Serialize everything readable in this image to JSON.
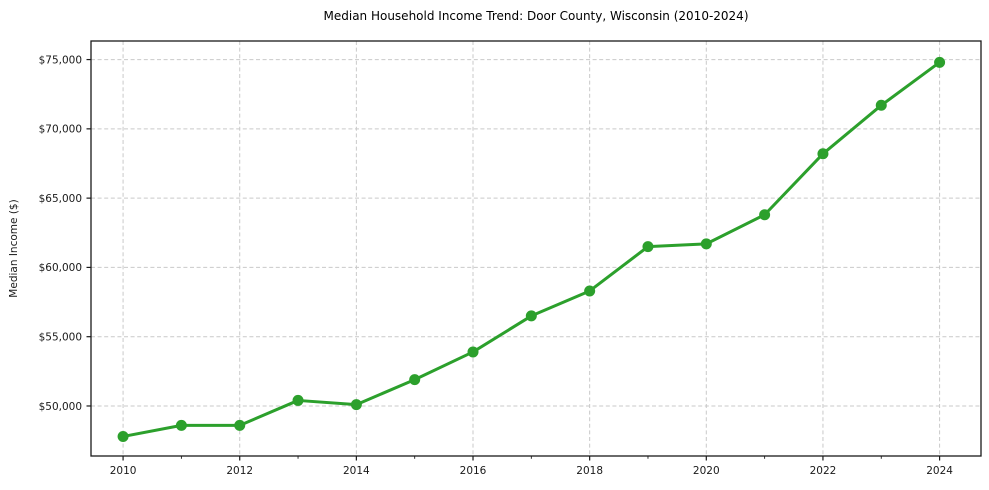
{
  "chart_data": {
    "type": "line",
    "title": "Median Household Income Trend: Door County, Wisconsin (2010-2024)",
    "xlabel": "",
    "ylabel": "Median Income ($)",
    "x": [
      2010,
      2011,
      2012,
      2013,
      2014,
      2015,
      2016,
      2017,
      2018,
      2019,
      2020,
      2021,
      2022,
      2023,
      2024
    ],
    "y": [
      47800,
      48600,
      48600,
      50400,
      50100,
      51900,
      53900,
      56500,
      58300,
      61500,
      61700,
      63800,
      68200,
      71700,
      74800
    ],
    "series_name": "Median household income",
    "x_major_ticks": [
      2010,
      2012,
      2014,
      2016,
      2018,
      2020,
      2022,
      2024
    ],
    "x_minor_ticks": [
      2011,
      2013,
      2015,
      2017,
      2019,
      2021,
      2023
    ],
    "y_ticks": [
      50000,
      55000,
      60000,
      65000,
      70000,
      75000
    ],
    "y_tick_labels": [
      "$50,000",
      "$55,000",
      "$60,000",
      "$65,000",
      "$70,000",
      "$75,000"
    ],
    "xlim": [
      2009.45,
      2024.71
    ],
    "ylim": [
      46390,
      76340
    ],
    "grid": "dashed",
    "legend": "none",
    "colors": {
      "line": "#2ca02c",
      "marker": "#2ca02c",
      "grid": "#c9c9c9",
      "frame": "#1a1a1a",
      "background": "#ffffff"
    }
  }
}
